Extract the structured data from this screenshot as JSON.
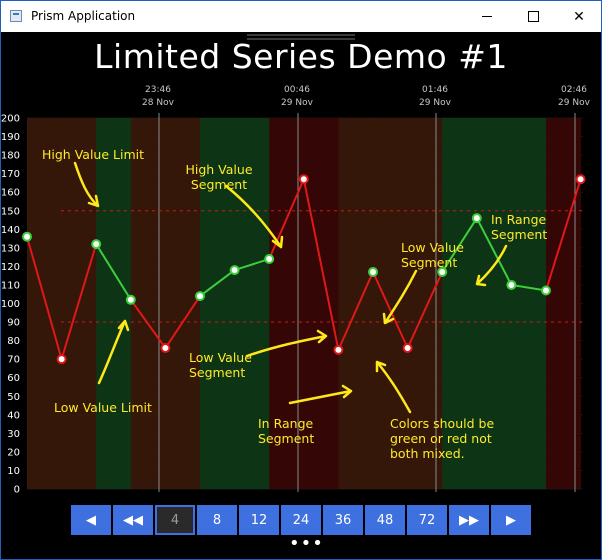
{
  "window": {
    "title": "Prism Application"
  },
  "chart_data": {
    "type": "line",
    "title": "Limited Series Demo #1",
    "y_ticks": [
      0,
      10,
      20,
      30,
      40,
      50,
      60,
      70,
      80,
      90,
      100,
      110,
      120,
      130,
      140,
      150,
      160,
      170,
      180,
      190,
      200
    ],
    "ylim": [
      0,
      200
    ],
    "x_tick_labels": [
      {
        "time": "23:46",
        "date": "28 Nov"
      },
      {
        "time": "00:46",
        "date": "29 Nov"
      },
      {
        "time": "01:46",
        "date": "29 Nov"
      },
      {
        "time": "02:46",
        "date": "29 Nov"
      }
    ],
    "high_limit": 150,
    "low_limit": 90,
    "values": [
      136,
      70,
      132,
      102,
      76,
      104,
      118,
      124,
      167,
      75,
      117,
      76,
      117,
      146,
      110,
      107,
      167
    ],
    "grid": true,
    "colors": {
      "in_range": "#3ccf3c",
      "out_of_range": "#e01818",
      "fill_in_range": "#0d3a17",
      "fill_high": "#3a0707",
      "fill_low": "#3a1a09",
      "limit_line": "#c21d1d"
    },
    "annotations": {
      "high_value_limit": "High Value Limit",
      "high_value_segment": [
        "High Value",
        "Segment"
      ],
      "low_value_limit": "Low Value Limit",
      "low_value_segment_1": [
        "Low Value",
        "Segment"
      ],
      "low_value_segment_2": [
        "Low Value",
        "Segment"
      ],
      "in_range_segment_1": [
        "In Range",
        "Segment"
      ],
      "in_range_segment_2": [
        "In Range",
        "Segment"
      ],
      "note": [
        "Colors should be",
        "green or red not",
        "both mixed."
      ]
    }
  },
  "toolbar": {
    "buttons": [
      "◀",
      "◀◀",
      "4",
      "8",
      "12",
      "24",
      "36",
      "48",
      "72",
      "▶▶",
      "▶"
    ],
    "selected": "4",
    "more": "•••"
  }
}
